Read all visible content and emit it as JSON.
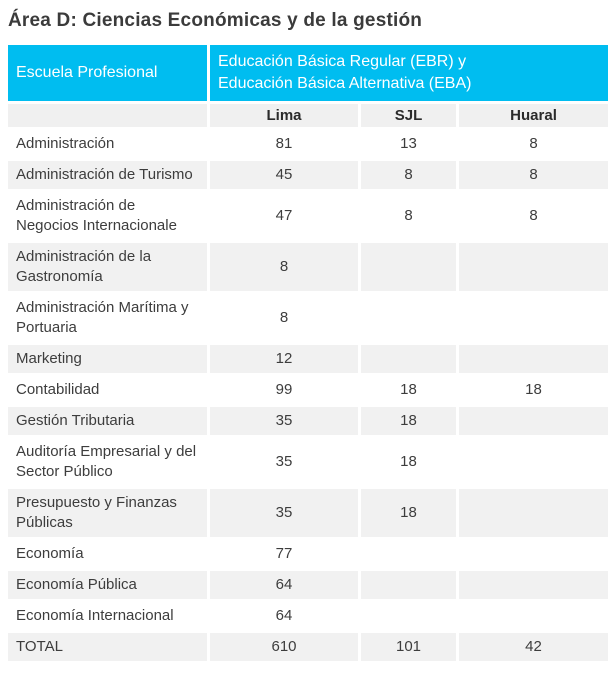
{
  "title": "Área D: Ciencias Económicas y de la gestión",
  "colors": {
    "header_bg": "#00bdf0",
    "header_text": "#ffffff",
    "subheader_bg": "#f0f0f0",
    "row_alt_bg": "#f1f1f1",
    "body_text": "#3d3d3d",
    "title_text": "#3b3b3b"
  },
  "table": {
    "header": {
      "col1": "Escuela Profesional",
      "col2_line1": "Educación Básica Regular (EBR) y",
      "col2_line2": "Educación Básica Alternativa (EBA)"
    },
    "subheader": {
      "col1": "",
      "col2": "Lima",
      "col3": "SJL",
      "col4": "Huaral"
    },
    "rows": [
      {
        "name": "Administración",
        "lima": "81",
        "sjl": "13",
        "huaral": "8"
      },
      {
        "name": "Administración de Turismo",
        "lima": "45",
        "sjl": "8",
        "huaral": "8"
      },
      {
        "name": "Administración de Negocios Internacionale",
        "lima": "47",
        "sjl": "8",
        "huaral": "8"
      },
      {
        "name": "Administración de la Gastronomía",
        "lima": "8",
        "sjl": "",
        "huaral": ""
      },
      {
        "name": "Administración Marítima y Portuaria",
        "lima": "8",
        "sjl": "",
        "huaral": ""
      },
      {
        "name": "Marketing",
        "lima": "12",
        "sjl": "",
        "huaral": ""
      },
      {
        "name": "Contabilidad",
        "lima": "99",
        "sjl": "18",
        "huaral": "18"
      },
      {
        "name": "Gestión Tributaria",
        "lima": "35",
        "sjl": "18",
        "huaral": ""
      },
      {
        "name": "Auditoría Empresarial y del Sector Público",
        "lima": "35",
        "sjl": "18",
        "huaral": ""
      },
      {
        "name": "Presupuesto y Finanzas Públicas",
        "lima": "35",
        "sjl": "18",
        "huaral": ""
      },
      {
        "name": "Economía",
        "lima": "77",
        "sjl": "",
        "huaral": ""
      },
      {
        "name": "Economía Pública",
        "lima": "64",
        "sjl": "",
        "huaral": ""
      },
      {
        "name": "Economía Internacional",
        "lima": "64",
        "sjl": "",
        "huaral": ""
      },
      {
        "name": "TOTAL",
        "lima": "610",
        "sjl": "101",
        "huaral": "42"
      }
    ]
  }
}
